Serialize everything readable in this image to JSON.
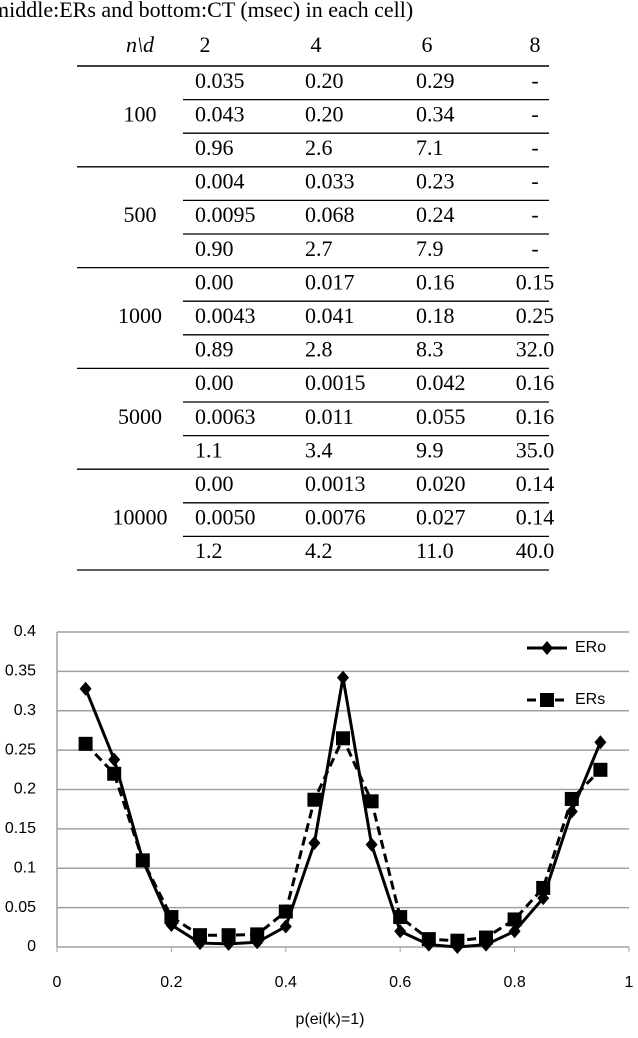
{
  "caption": "middle:ERs and bottom:CT (msec) in each cell)",
  "table": {
    "header": [
      "n\\d",
      "2",
      "4",
      "6",
      "8"
    ],
    "groups": [
      {
        "n": "100",
        "rows": [
          [
            "0.035",
            "0.20",
            "0.29",
            "-"
          ],
          [
            "0.043",
            "0.20",
            "0.34",
            "-"
          ],
          [
            "0.96",
            "2.6",
            "7.1",
            "-"
          ]
        ]
      },
      {
        "n": "500",
        "rows": [
          [
            "0.004",
            "0.033",
            "0.23",
            "-"
          ],
          [
            "0.0095",
            "0.068",
            "0.24",
            "-"
          ],
          [
            "0.90",
            "2.7",
            "7.9",
            "-"
          ]
        ]
      },
      {
        "n": "1000",
        "rows": [
          [
            "0.00",
            "0.017",
            "0.16",
            "0.15"
          ],
          [
            "0.0043",
            "0.041",
            "0.18",
            "0.25"
          ],
          [
            "0.89",
            "2.8",
            "8.3",
            "32.0"
          ]
        ]
      },
      {
        "n": "5000",
        "rows": [
          [
            "0.00",
            "0.0015",
            "0.042",
            "0.16"
          ],
          [
            "0.0063",
            "0.011",
            "0.055",
            "0.16"
          ],
          [
            "1.1",
            "3.4",
            "9.9",
            "35.0"
          ]
        ]
      },
      {
        "n": "10000",
        "rows": [
          [
            "0.00",
            "0.0013",
            "0.020",
            "0.14"
          ],
          [
            "0.0050",
            "0.0076",
            "0.027",
            "0.14"
          ],
          [
            "1.2",
            "4.2",
            "11.0",
            "40.0"
          ]
        ]
      }
    ]
  },
  "chart_data": {
    "type": "line",
    "x_label": "p(ei(k)=1)",
    "x": [
      0.05,
      0.1,
      0.15,
      0.2,
      0.25,
      0.3,
      0.35,
      0.4,
      0.45,
      0.5,
      0.55,
      0.6,
      0.65,
      0.7,
      0.75,
      0.8,
      0.85,
      0.9,
      0.95
    ],
    "series": [
      {
        "name": "ERo",
        "color": "#000000",
        "dash": false,
        "marker": "diamond",
        "values": [
          0.328,
          0.238,
          0.11,
          0.028,
          0.005,
          0.004,
          0.006,
          0.026,
          0.132,
          0.342,
          0.13,
          0.02,
          0.003,
          0.0,
          0.003,
          0.02,
          0.062,
          0.172,
          0.26
        ]
      },
      {
        "name": "ERs",
        "color": "#000000",
        "dash": true,
        "marker": "square",
        "values": [
          0.258,
          0.22,
          0.11,
          0.038,
          0.015,
          0.015,
          0.016,
          0.045,
          0.187,
          0.265,
          0.185,
          0.038,
          0.01,
          0.008,
          0.012,
          0.035,
          0.075,
          0.188,
          0.225
        ]
      }
    ],
    "xlim": [
      0,
      1
    ],
    "xticks": [
      0,
      0.2,
      0.4,
      0.6,
      0.8,
      1
    ],
    "ylim": [
      0,
      0.4
    ],
    "yticks": [
      0,
      0.05,
      0.1,
      0.15,
      0.2,
      0.25,
      0.3,
      0.35,
      0.4
    ],
    "grid": true,
    "legend": "upper right"
  }
}
